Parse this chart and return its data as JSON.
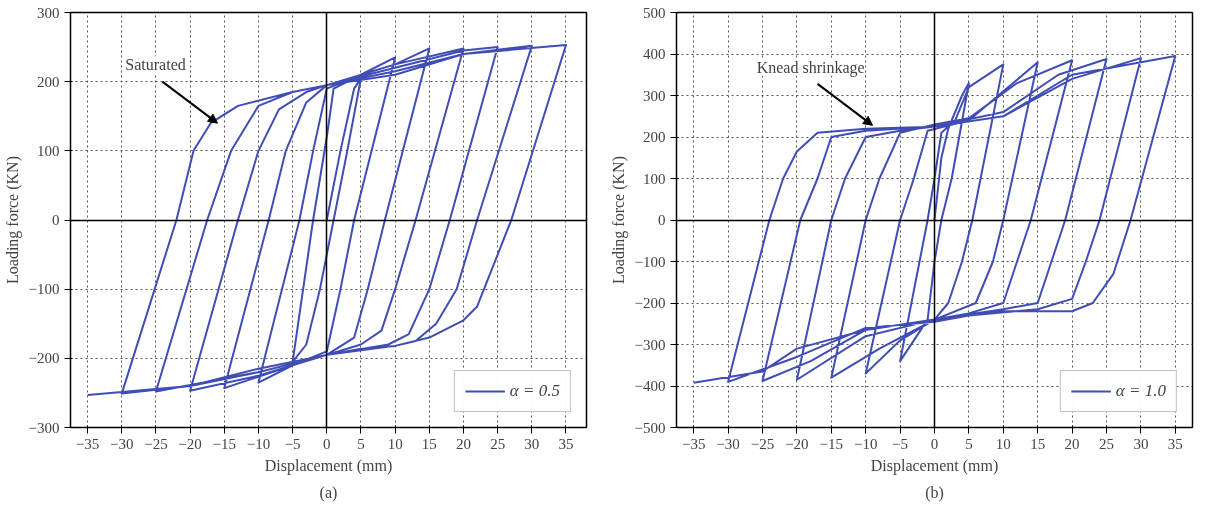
{
  "chart_data": [
    {
      "type": "line",
      "xlabel": "Displacement (mm)",
      "ylabel": "Loading force (KN)",
      "annotations": [
        {
          "text": "Saturated",
          "x": -16,
          "y": 140
        },
        "(a)"
      ],
      "xlim": [
        -37.5,
        38
      ],
      "ylim": [
        -300,
        300
      ],
      "xticks": [
        -35,
        -30,
        -25,
        -20,
        -15,
        -10,
        -5,
        0,
        5,
        10,
        15,
        20,
        25,
        30,
        35
      ],
      "yticks": [
        -300,
        -200,
        -100,
        0,
        100,
        200,
        300
      ],
      "grid": true,
      "legend": "bottom right",
      "series": [
        {
          "name": "α = 0.5",
          "color": "#3f4db5",
          "x": [
            0,
            2,
            4,
            5,
            3,
            1,
            -1,
            -3,
            -5,
            -2,
            0,
            1,
            5,
            10,
            4,
            2,
            0,
            -5,
            -10,
            -4,
            -2,
            0,
            5,
            10,
            15,
            8.5,
            6,
            4,
            0,
            -5,
            -15,
            -8.5,
            -6,
            -3,
            0,
            10,
            20,
            13,
            10,
            8,
            5,
            0,
            -10,
            -20,
            -13,
            -10,
            -7,
            -3,
            0,
            10,
            20,
            25,
            18,
            15,
            12,
            9,
            0,
            -10,
            -25,
            -17.5,
            -14,
            -10,
            -5,
            0,
            10,
            20,
            30,
            22,
            19,
            16,
            13,
            10,
            0,
            -10,
            -20,
            -30,
            -22,
            -19.5,
            -17,
            -13,
            -5,
            0,
            10,
            20,
            35,
            27,
            25,
            22,
            20,
            15,
            10,
            5,
            0,
            -10,
            -20,
            -35
          ],
          "values": [
            0,
            100,
            190,
            205,
            100,
            0,
            -100,
            -180,
            -205,
            0,
            120,
            190,
            210,
            235,
            0,
            -100,
            -190,
            -210,
            -235,
            0,
            100,
            190,
            210,
            225,
            248,
            0,
            -100,
            -170,
            -195,
            -210,
            -243,
            0,
            100,
            170,
            195,
            225,
            248,
            0,
            -100,
            -160,
            -180,
            -195,
            -225,
            -247,
            0,
            100,
            160,
            185,
            195,
            220,
            245,
            250,
            0,
            -100,
            -165,
            -180,
            -195,
            -220,
            -248,
            0,
            100,
            165,
            185,
            195,
            215,
            240,
            252,
            0,
            -100,
            -150,
            -175,
            -182,
            -195,
            -215,
            -240,
            -251,
            0,
            100,
            140,
            165,
            185,
            195,
            210,
            240,
            253,
            0,
            -50,
            -125,
            -145,
            -170,
            -182,
            -186,
            -195,
            -220,
            -240,
            -253
          ]
        }
      ]
    },
    {
      "type": "line",
      "xlabel": "Displacement (mm)",
      "ylabel": "Loading force (KN)",
      "annotations": [
        {
          "text": "Knead shrinkage",
          "x": -9,
          "y": 228
        },
        "(b)"
      ],
      "xlim": [
        -37.5,
        37.5
      ],
      "ylim": [
        -500,
        500
      ],
      "xticks": [
        -35,
        -30,
        -25,
        -20,
        -15,
        -10,
        -5,
        0,
        5,
        10,
        15,
        20,
        25,
        30,
        35
      ],
      "yticks": [
        -500,
        -400,
        -300,
        -200,
        -100,
        0,
        100,
        200,
        300,
        400,
        500
      ],
      "grid": true,
      "legend": "bottom right",
      "series": [
        {
          "name": "α = 1.0",
          "color": "#3f4db5",
          "x": [
            0,
            1,
            2,
            4,
            5,
            2.5,
            1,
            0,
            -1,
            -3,
            -5,
            -1,
            0,
            1,
            3,
            5,
            10,
            5.5,
            4,
            2,
            0,
            -5,
            -10,
            -5,
            -3,
            -1,
            5,
            10,
            15,
            10,
            8.5,
            6,
            0,
            -8,
            -15,
            -10,
            -8,
            -5,
            0,
            5,
            12,
            20,
            14,
            12,
            10,
            5,
            0,
            -10,
            -20,
            -15,
            -13,
            -10,
            -5,
            0,
            10,
            18,
            25,
            19,
            17,
            15,
            10,
            0,
            -10,
            -18,
            -25,
            -19.5,
            -17,
            -15,
            -10,
            0,
            10,
            20,
            30,
            24,
            22,
            20,
            15,
            5,
            0,
            -10,
            -20,
            -30,
            -24,
            -22,
            -20,
            -17,
            -10,
            0,
            10,
            20,
            35,
            28.5,
            26,
            23,
            20,
            10,
            0,
            -10,
            -20,
            -25,
            -35
          ],
          "values": [
            0,
            150,
            220,
            300,
            330,
            100,
            0,
            -100,
            -240,
            -290,
            -340,
            0,
            100,
            210,
            240,
            320,
            375,
            0,
            -100,
            -200,
            -240,
            -290,
            -370,
            0,
            100,
            215,
            240,
            310,
            380,
            0,
            -100,
            -200,
            -240,
            -310,
            -380,
            0,
            100,
            210,
            230,
            245,
            330,
            385,
            0,
            -100,
            -200,
            -225,
            -240,
            -280,
            -385,
            0,
            100,
            200,
            215,
            225,
            260,
            350,
            388,
            0,
            -100,
            -200,
            -215,
            -240,
            -265,
            -340,
            -388,
            0,
            100,
            200,
            215,
            225,
            250,
            340,
            390,
            0,
            -100,
            -190,
            -215,
            -230,
            -245,
            -260,
            -330,
            -390,
            0,
            100,
            165,
            210,
            220,
            225,
            250,
            350,
            395,
            0,
            -130,
            -200,
            -220,
            -220,
            -240,
            -265,
            -310,
            -365,
            -392
          ]
        }
      ]
    }
  ]
}
